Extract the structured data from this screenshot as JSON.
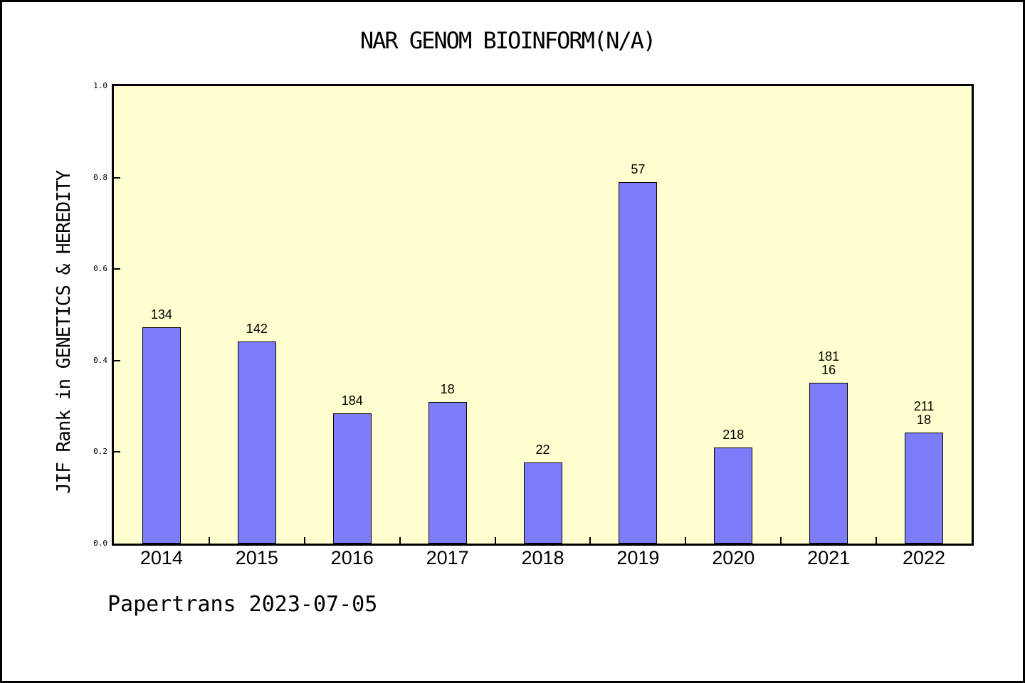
{
  "figure": {
    "footer": "Papertrans 2023-07-05"
  },
  "chart_data": {
    "type": "bar",
    "title": "NAR GENOM BIOINFORM(N/A)",
    "ylabel": "JIF Rank in GENETICS & HEREDITY",
    "xlabel": "",
    "categories": [
      "2014",
      "2015",
      "2016",
      "2017",
      "2018",
      "2019",
      "2020",
      "2021",
      "2022"
    ],
    "values": [
      0.473,
      0.442,
      0.285,
      0.31,
      0.177,
      0.79,
      0.21,
      0.352,
      0.243
    ],
    "bar_labels": [
      [
        "134"
      ],
      [
        "142"
      ],
      [
        "184"
      ],
      [
        "18"
      ],
      [
        "22"
      ],
      [
        "57"
      ],
      [
        "218"
      ],
      [
        "181",
        "16"
      ],
      [
        "211",
        "18"
      ]
    ],
    "ylim": [
      0.0,
      1.0
    ],
    "ytick_values": [
      0.0,
      0.2,
      0.4,
      0.6,
      0.8,
      1.0
    ],
    "ytick_labels": [
      "0.0",
      "0.2",
      "0.4",
      "0.6",
      "0.8",
      "1.0"
    ],
    "grid": false,
    "legend": null,
    "colors": {
      "bar_fill": "#7d7df9",
      "bar_edge": "#000000",
      "plot_background": "#ffffcf",
      "frame": "#000000",
      "text": "#000000",
      "figure_background": "#ffffff"
    }
  }
}
